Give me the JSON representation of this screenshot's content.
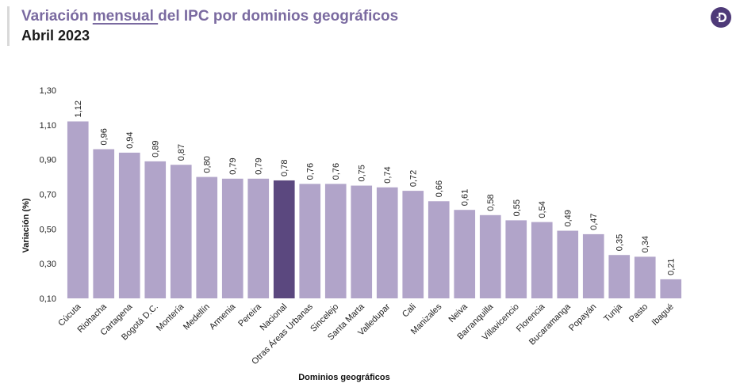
{
  "header": {
    "title_pre": "Variación ",
    "title_underlined": "mensual ",
    "title_post": "del IPC por dominios geográficos",
    "subtitle": "Abril 2023"
  },
  "logo": {
    "icon": "brand-logo-icon",
    "color": "#4e3a78"
  },
  "colors": {
    "bar": "#b1a4c9",
    "highlight": "#5b487f",
    "title": "#7a6aa0"
  },
  "chart_data": {
    "type": "bar",
    "xlabel": "Dominios geográficos",
    "ylabel": "Variación (%)",
    "ylim": [
      0.1,
      1.3
    ],
    "yticks": [
      "0,10",
      "0,30",
      "0,50",
      "0,70",
      "0,90",
      "1,10",
      "1,30"
    ],
    "ytick_values": [
      0.1,
      0.3,
      0.5,
      0.7,
      0.9,
      1.1,
      1.3
    ],
    "grid": false,
    "legend": "none",
    "highlight": "Nacional",
    "categories": [
      "Cúcuta",
      "Riohacha",
      "Cartagena",
      "Bogotá D.C.",
      "Montería",
      "Medellín",
      "Armenia",
      "Pereira",
      "Nacional",
      "Otras Áreas Urbanas",
      "Sincelejo",
      "Santa Marta",
      "Valledupar",
      "Cali",
      "Manizales",
      "Neiva",
      "Barranquilla",
      "Villavicencio",
      "Florencia",
      "Bucaramanga",
      "Popayán",
      "Tunja",
      "Pasto",
      "Ibagué"
    ],
    "values": [
      1.12,
      0.96,
      0.94,
      0.89,
      0.87,
      0.8,
      0.79,
      0.79,
      0.78,
      0.76,
      0.76,
      0.75,
      0.74,
      0.72,
      0.66,
      0.61,
      0.58,
      0.55,
      0.54,
      0.49,
      0.47,
      0.35,
      0.34,
      0.21
    ],
    "value_labels": [
      "1,12",
      "0,96",
      "0,94",
      "0,89",
      "0,87",
      "0,80",
      "0,79",
      "0,79",
      "0,78",
      "0,76",
      "0,76",
      "0,75",
      "0,74",
      "0,72",
      "0,66",
      "0,61",
      "0,58",
      "0,55",
      "0,54",
      "0,49",
      "0,47",
      "0,35",
      "0,34",
      "0,21"
    ]
  }
}
